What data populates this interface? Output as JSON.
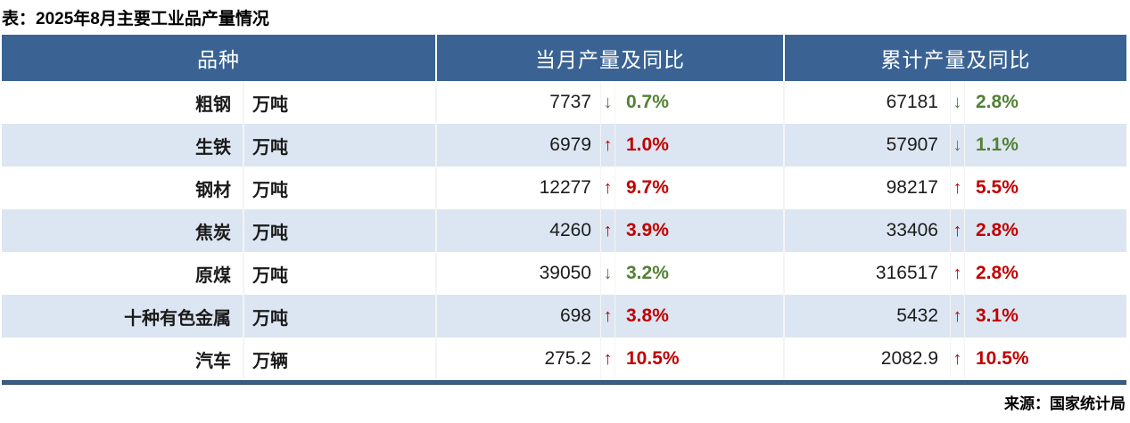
{
  "title": "表：2025年8月主要工业品产量情况",
  "source": "来源：国家统计局",
  "colors": {
    "header_bg": "#3A6394",
    "row_alt_bg": "#DCE6F2",
    "up_red": "#C00000",
    "down_green": "#538135",
    "bottom_rule_navy": "#35618F"
  },
  "icons": {
    "up_arrow": "↑",
    "down_arrow": "↓"
  },
  "table": {
    "headers": [
      "品种",
      "当月产量及同比",
      "累计产量及同比"
    ],
    "rows": [
      {
        "name": "粗钢",
        "unit": "万吨",
        "month": {
          "value": "7737",
          "dir": "down",
          "pct": "0.7%"
        },
        "cum": {
          "value": "67181",
          "dir": "down",
          "pct": "2.8%"
        }
      },
      {
        "name": "生铁",
        "unit": "万吨",
        "month": {
          "value": "6979",
          "dir": "up",
          "pct": "1.0%"
        },
        "cum": {
          "value": "57907",
          "dir": "down",
          "pct": "1.1%"
        }
      },
      {
        "name": "钢材",
        "unit": "万吨",
        "month": {
          "value": "12277",
          "dir": "up",
          "pct": "9.7%"
        },
        "cum": {
          "value": "98217",
          "dir": "up",
          "pct": "5.5%"
        }
      },
      {
        "name": "焦炭",
        "unit": "万吨",
        "month": {
          "value": "4260",
          "dir": "up",
          "pct": "3.9%"
        },
        "cum": {
          "value": "33406",
          "dir": "up",
          "pct": "2.8%"
        }
      },
      {
        "name": "原煤",
        "unit": "万吨",
        "month": {
          "value": "39050",
          "dir": "down",
          "pct": "3.2%"
        },
        "cum": {
          "value": "316517",
          "dir": "up",
          "pct": "2.8%"
        }
      },
      {
        "name": "十种有色金属",
        "unit": "万吨",
        "month": {
          "value": "698",
          "dir": "up",
          "pct": "3.8%"
        },
        "cum": {
          "value": "5432",
          "dir": "up",
          "pct": "3.1%"
        }
      },
      {
        "name": "汽车",
        "unit": "万辆",
        "month": {
          "value": "275.2",
          "dir": "up",
          "pct": "10.5%"
        },
        "cum": {
          "value": "2082.9",
          "dir": "up",
          "pct": "10.5%"
        }
      }
    ]
  }
}
